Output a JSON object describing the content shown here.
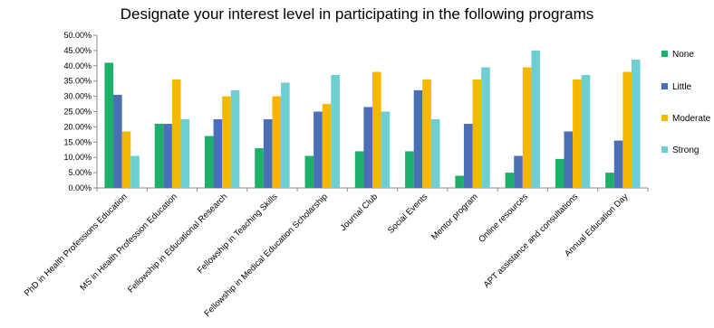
{
  "chart_data": {
    "type": "bar",
    "title": "Designate your interest level in participating in the following programs",
    "xlabel": "",
    "ylabel": "",
    "ylim": [
      0,
      0.5
    ],
    "y_ticks": [
      "0.00%",
      "5.00%",
      "10.00%",
      "15.00%",
      "20.00%",
      "25.00%",
      "30.00%",
      "35.00%",
      "40.00%",
      "45.00%",
      "50.00%"
    ],
    "grid": false,
    "legend_position": "right",
    "categories": [
      "PhD in Health Professions Education",
      "MS in Health Profession Education",
      "Fellowship in Educational Research",
      "Fellowship in Teaching Skills",
      "Fellowship in Medical Education Scholarship",
      "Journal Club",
      "Social Events",
      "Mentor program",
      "Online resources",
      "APT assistance and consultations",
      "Annual Education Day"
    ],
    "series": [
      {
        "name": "None",
        "color": "#1db06a",
        "values": [
          0.41,
          0.21,
          0.17,
          0.13,
          0.105,
          0.12,
          0.12,
          0.04,
          0.05,
          0.095,
          0.05
        ]
      },
      {
        "name": "Little",
        "color": "#4a6fb5",
        "values": [
          0.305,
          0.21,
          0.225,
          0.225,
          0.25,
          0.265,
          0.32,
          0.21,
          0.105,
          0.185,
          0.155
        ]
      },
      {
        "name": "Moderate",
        "color": "#f5b800",
        "values": [
          0.185,
          0.355,
          0.3,
          0.3,
          0.275,
          0.38,
          0.355,
          0.355,
          0.395,
          0.355,
          0.38
        ]
      },
      {
        "name": "Strong",
        "color": "#6ecfd2",
        "values": [
          0.105,
          0.225,
          0.32,
          0.345,
          0.37,
          0.25,
          0.225,
          0.395,
          0.45,
          0.37,
          0.42
        ]
      }
    ]
  }
}
